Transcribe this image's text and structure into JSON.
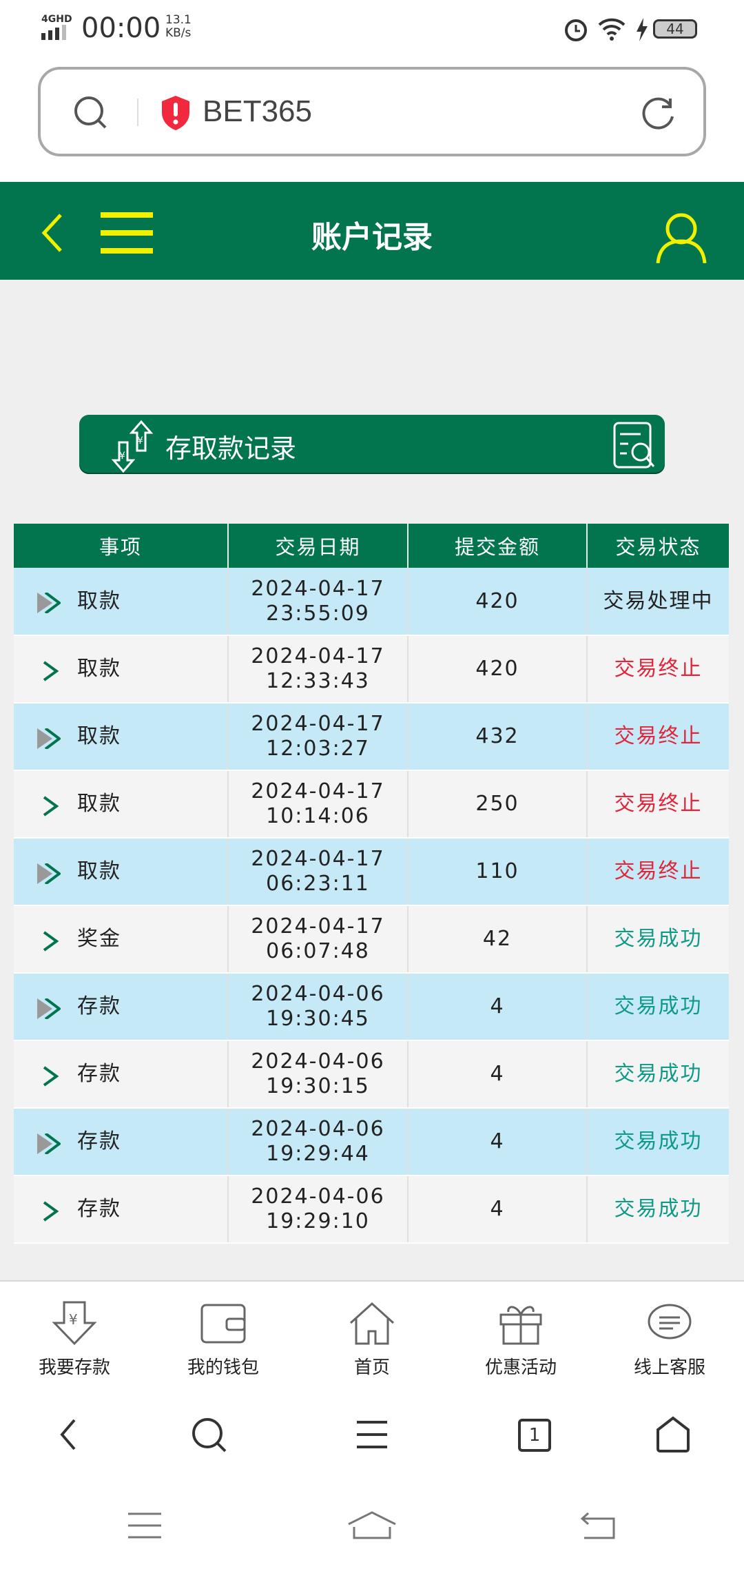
{
  "status_bar": {
    "network": "4GHD",
    "time": "00:00",
    "speed_value": "13.1",
    "speed_unit": "KB/s",
    "battery": "44"
  },
  "url_bar": {
    "site": "BET365"
  },
  "header": {
    "title": "账户记录"
  },
  "section": {
    "label": "存取款记录"
  },
  "table": {
    "columns": [
      "事项",
      "交易日期",
      "提交金额",
      "交易状态"
    ],
    "rows": [
      {
        "item": "取款",
        "date": "2024-04-17",
        "time": "23:55:09",
        "amount": "420",
        "status": "交易处理中",
        "status_type": "processing"
      },
      {
        "item": "取款",
        "date": "2024-04-17",
        "time": "12:33:43",
        "amount": "420",
        "status": "交易终止",
        "status_type": "stopped"
      },
      {
        "item": "取款",
        "date": "2024-04-17",
        "time": "12:03:27",
        "amount": "432",
        "status": "交易终止",
        "status_type": "stopped"
      },
      {
        "item": "取款",
        "date": "2024-04-17",
        "time": "10:14:06",
        "amount": "250",
        "status": "交易终止",
        "status_type": "stopped"
      },
      {
        "item": "取款",
        "date": "2024-04-17",
        "time": "06:23:11",
        "amount": "110",
        "status": "交易终止",
        "status_type": "stopped"
      },
      {
        "item": "奖金",
        "date": "2024-04-17",
        "time": "06:07:48",
        "amount": "42",
        "status": "交易成功",
        "status_type": "success"
      },
      {
        "item": "存款",
        "date": "2024-04-06",
        "time": "19:30:45",
        "amount": "4",
        "status": "交易成功",
        "status_type": "success"
      },
      {
        "item": "存款",
        "date": "2024-04-06",
        "time": "19:30:15",
        "amount": "4",
        "status": "交易成功",
        "status_type": "success"
      },
      {
        "item": "存款",
        "date": "2024-04-06",
        "time": "19:29:44",
        "amount": "4",
        "status": "交易成功",
        "status_type": "success"
      },
      {
        "item": "存款",
        "date": "2024-04-06",
        "time": "19:29:10",
        "amount": "4",
        "status": "交易成功",
        "status_type": "success"
      }
    ]
  },
  "tabbar": {
    "items": [
      {
        "label": "我要存款",
        "icon": "deposit-icon"
      },
      {
        "label": "我的钱包",
        "icon": "wallet-icon"
      },
      {
        "label": "首页",
        "icon": "home-icon"
      },
      {
        "label": "优惠活动",
        "icon": "gift-icon"
      },
      {
        "label": "线上客服",
        "icon": "chat-icon"
      }
    ]
  },
  "browser_bar": {
    "tab_count": "1"
  },
  "colors": {
    "brand_green": "#02754f",
    "accent_yellow": "#f0f000",
    "row_blue": "#c5e9f6",
    "row_gray": "#f4f4f4",
    "stopped_red": "#e0263a",
    "success_teal": "#0e9a86"
  }
}
